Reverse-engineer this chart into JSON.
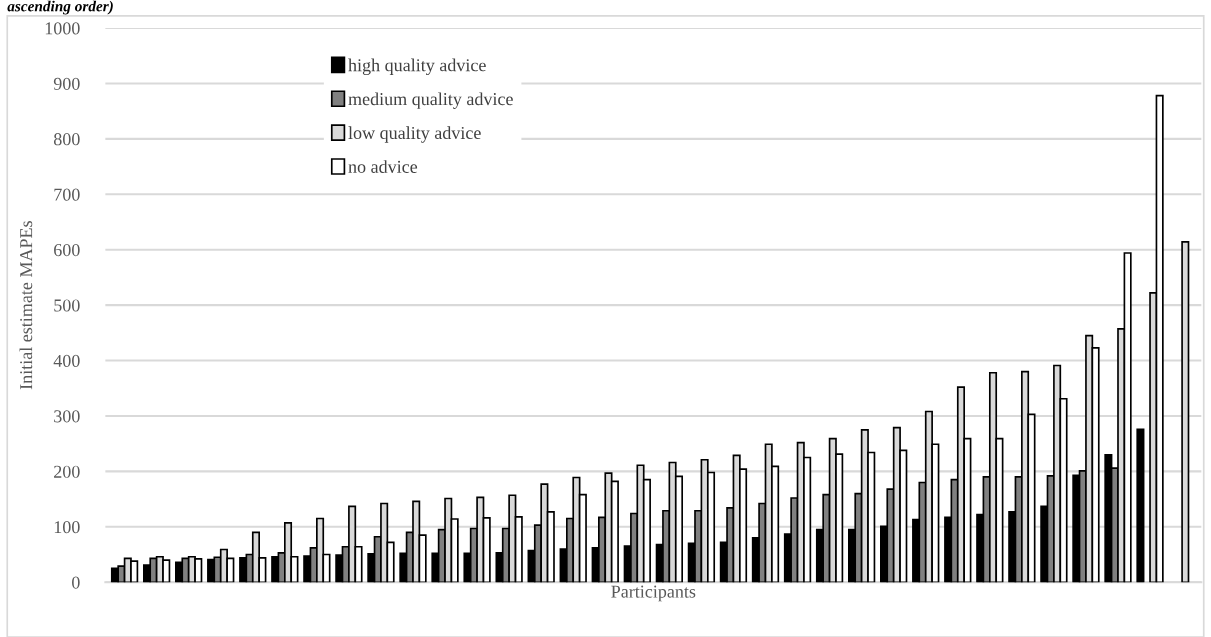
{
  "chart_data": {
    "type": "bar",
    "annotations": [
      "ascending order)"
    ],
    "xlabel": "Participants",
    "ylabel": "Initial estimate MAPEs",
    "categories": [
      null,
      null,
      null,
      null,
      null,
      null,
      null,
      null,
      null,
      null,
      null,
      null,
      null,
      null,
      null,
      null,
      null,
      null,
      null,
      null,
      null,
      null,
      null,
      null,
      null,
      null,
      null,
      null,
      null,
      null,
      null,
      null,
      null,
      null
    ],
    "series": [
      {
        "name": "high quality advice",
        "color": "#000000",
        "values": [
          25,
          31,
          36,
          41,
          44,
          46,
          47,
          49,
          51,
          52,
          52,
          52,
          53,
          57,
          60,
          62,
          65,
          68,
          70,
          72,
          80,
          87,
          95,
          95,
          101,
          113,
          117,
          122,
          127,
          137,
          193,
          230,
          276,
          null
        ]
      },
      {
        "name": "medium quality advice",
        "color": "#808080",
        "values": [
          29,
          43,
          43,
          45,
          50,
          53,
          62,
          64,
          82,
          90,
          95,
          97,
          97,
          103,
          115,
          117,
          124,
          129,
          129,
          134,
          142,
          152,
          158,
          160,
          168,
          180,
          185,
          190,
          190,
          192,
          201,
          206,
          null,
          null
        ]
      },
      {
        "name": "low quality advice",
        "color": "#d9d9d9",
        "values": [
          43,
          46,
          46,
          59,
          90,
          107,
          115,
          137,
          142,
          146,
          151,
          153,
          157,
          177,
          189,
          197,
          211,
          216,
          221,
          229,
          249,
          252,
          259,
          275,
          279,
          308,
          352,
          378,
          380,
          391,
          445,
          457,
          522,
          614
        ]
      },
      {
        "name": "no advice",
        "color": "#ffffff",
        "values": [
          38,
          40,
          42,
          43,
          44,
          46,
          50,
          64,
          72,
          85,
          114,
          116,
          118,
          127,
          158,
          182,
          185,
          191,
          198,
          204,
          209,
          225,
          231,
          234,
          238,
          249,
          259,
          259,
          303,
          331,
          423,
          594,
          878,
          null
        ]
      }
    ],
    "ylim": [
      0,
      1000
    ],
    "yticks": [
      0,
      100,
      200,
      300,
      400,
      500,
      600,
      700,
      800,
      900,
      1000
    ],
    "grid": "y",
    "legend": "top left",
    "tick_labels": "y"
  }
}
